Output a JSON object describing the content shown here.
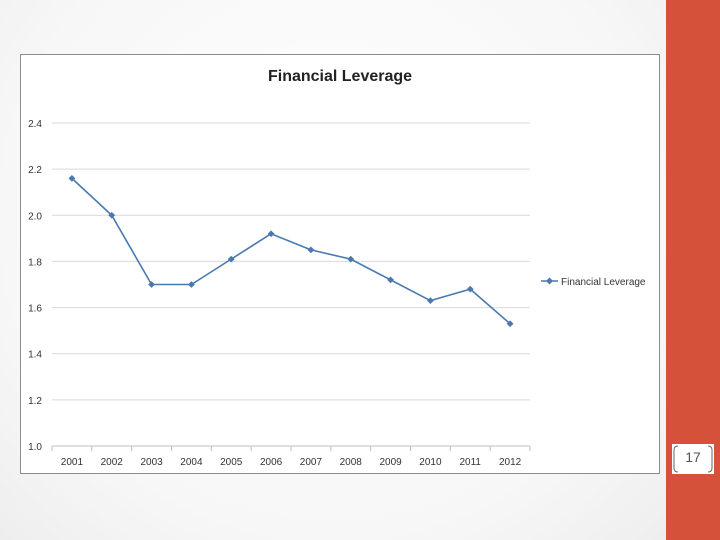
{
  "slide": {
    "page_number": "17",
    "accent_color": "#d6513a"
  },
  "chart_data": {
    "type": "line",
    "title": "Financial Leverage",
    "xlabel": "",
    "ylabel": "",
    "categories": [
      "2001",
      "2002",
      "2003",
      "2004",
      "2005",
      "2006",
      "2007",
      "2008",
      "2009",
      "2010",
      "2011",
      "2012"
    ],
    "series": [
      {
        "name": "Financial Leverage",
        "color": "#4a79b0",
        "values": [
          2.16,
          2.0,
          1.7,
          1.7,
          1.81,
          1.92,
          1.85,
          1.81,
          1.72,
          1.63,
          1.68,
          1.53
        ]
      }
    ],
    "ylim": [
      1.0,
      2.4
    ],
    "yticks": [
      "1.0",
      "1.2",
      "1.4",
      "1.6",
      "1.8",
      "2.0",
      "2.2",
      "2.4"
    ],
    "grid": true,
    "legend": "right"
  }
}
